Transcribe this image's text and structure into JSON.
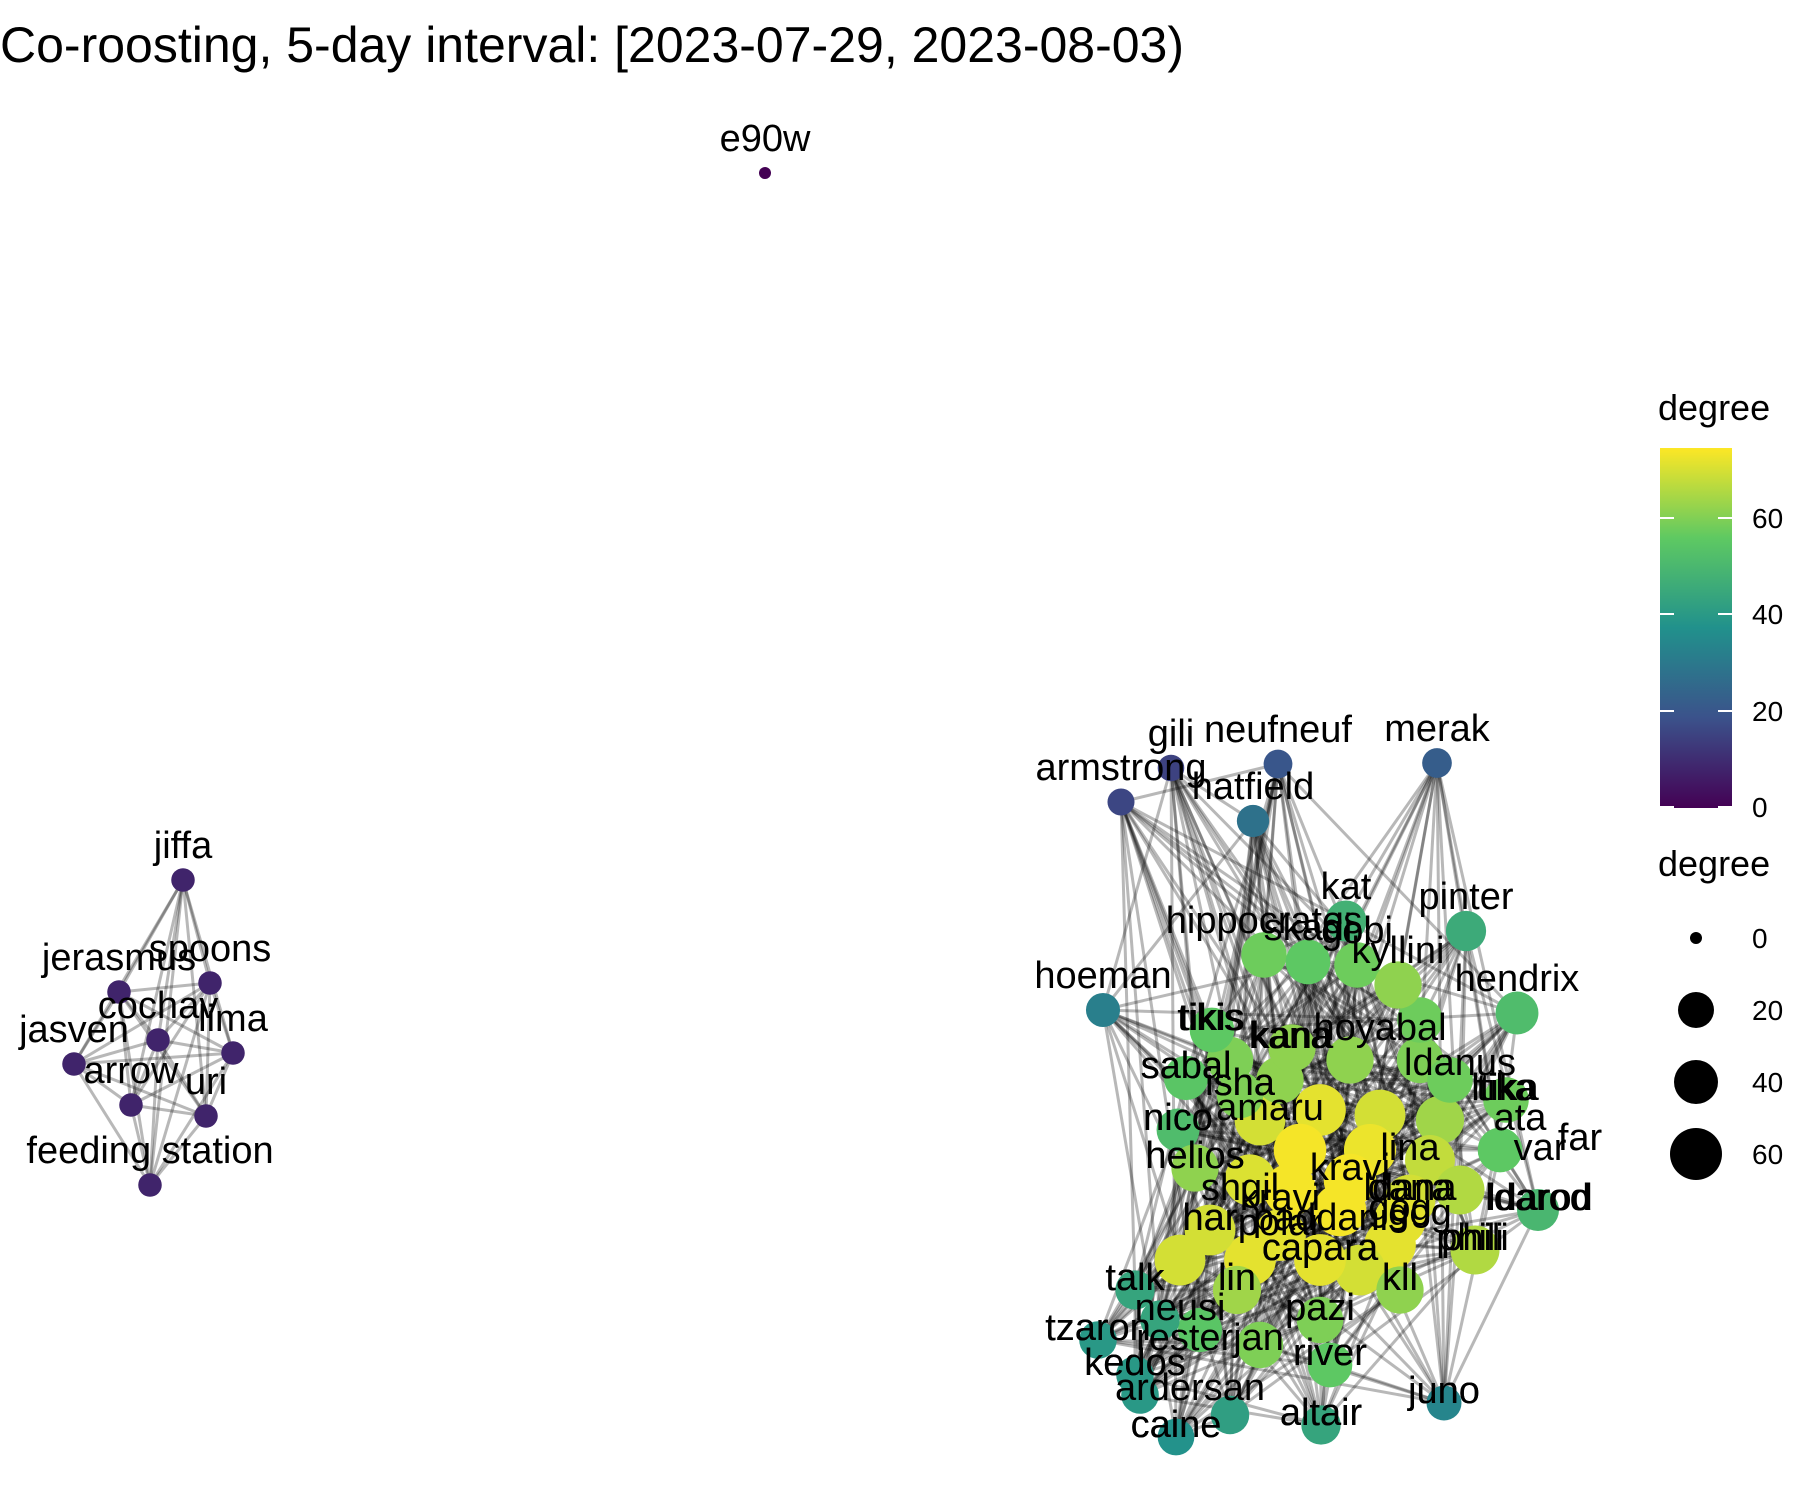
{
  "title": "Co-roosting, 5-day interval: [2023-07-29, 2023-08-03)",
  "legend": {
    "color_title": "degree",
    "color_ticks": [
      "60",
      "40",
      "20",
      "0"
    ],
    "size_title": "degree",
    "size_ticks": [
      "0",
      "20",
      "40",
      "60"
    ],
    "colormap": [
      "#440154",
      "#3b528b",
      "#21918c",
      "#5ec962",
      "#fde725"
    ]
  },
  "network": {
    "scale": "viridis",
    "degree_max": 75,
    "nodes": [
      {
        "id": "e90w",
        "degree": 0
      },
      {
        "id": "jiffa",
        "degree": 8
      },
      {
        "id": "jerasmus",
        "degree": 8
      },
      {
        "id": "spoons",
        "degree": 8
      },
      {
        "id": "cochav",
        "degree": 8
      },
      {
        "id": "lima",
        "degree": 8
      },
      {
        "id": "jasven",
        "degree": 8
      },
      {
        "id": "arrow",
        "degree": 8
      },
      {
        "id": "uri",
        "degree": 8
      },
      {
        "id": "feeding station",
        "degree": 8
      },
      {
        "id": "gili",
        "degree": 15
      },
      {
        "id": "neufneuf",
        "degree": 20
      },
      {
        "id": "merak",
        "degree": 22
      },
      {
        "id": "armstrong",
        "degree": 16
      },
      {
        "id": "hatfield",
        "degree": 28
      },
      {
        "id": "kat",
        "degree": 48
      },
      {
        "id": "pinter",
        "degree": 46
      },
      {
        "id": "hippocrates",
        "degree": 58
      },
      {
        "id": "skadi",
        "degree": 56
      },
      {
        "id": "gobi",
        "degree": 58
      },
      {
        "id": "kyllini",
        "degree": 62
      },
      {
        "id": "hendrix",
        "degree": 52
      },
      {
        "id": "hoeman",
        "degree": 32
      },
      {
        "id": "tikis",
        "degree": 56
      },
      {
        "id": "kana",
        "degree": 62
      },
      {
        "id": "sabal",
        "degree": 55
      },
      {
        "id": "isha",
        "degree": 60
      },
      {
        "id": "tika",
        "degree": 58
      },
      {
        "id": "nico",
        "degree": 52
      },
      {
        "id": "helios",
        "degree": 62
      },
      {
        "id": "har",
        "degree": 70
      },
      {
        "id": "polar",
        "degree": 72
      },
      {
        "id": "ldarod",
        "degree": 50
      },
      {
        "id": "phili",
        "degree": 66
      },
      {
        "id": "capara",
        "degree": 72
      },
      {
        "id": "talk",
        "degree": 44
      },
      {
        "id": "tzaron",
        "degree": 40
      },
      {
        "id": "lin",
        "degree": 64
      },
      {
        "id": "kll",
        "degree": 62
      },
      {
        "id": "pazi",
        "degree": 60
      },
      {
        "id": "river",
        "degree": 56
      },
      {
        "id": "kedos",
        "degree": 40
      },
      {
        "id": "caine",
        "degree": 38
      },
      {
        "id": "altair",
        "degree": 44
      },
      {
        "id": "juno",
        "degree": 34
      },
      {
        "id": "dana",
        "degree": 70
      },
      {
        "id": "kravi",
        "degree": 74
      },
      {
        "id": "gog",
        "degree": 72
      }
    ],
    "dense_labels": [
      "tikis",
      "sabal",
      "isha",
      "nico",
      "helios",
      "har",
      "kana",
      "amaru",
      "hoyabal",
      "ldanus",
      "ltika",
      "ata",
      "var",
      "far",
      "ldarod",
      "lina",
      "phili",
      "paddanis",
      "gog",
      "kravi",
      "capara",
      "talk",
      "tzaron",
      "kedos",
      "caine",
      "altair",
      "juno",
      "river",
      "pazi",
      "kll",
      "lin",
      "neusi",
      "resterjan",
      "ardersan",
      "shgil",
      "ldana"
    ]
  }
}
